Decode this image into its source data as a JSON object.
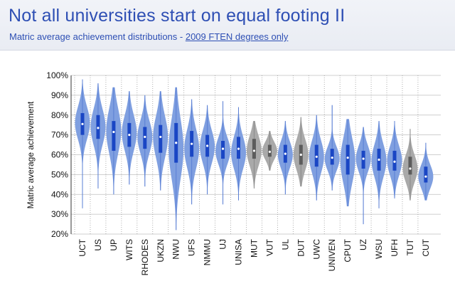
{
  "header": {
    "title": "Not all universities start on equal footing II",
    "subtitle_prefix": "Matric average achievement distributions - ",
    "subtitle_link": "2009 FTEN degrees only"
  },
  "colors": {
    "violin_blue": "#7f9fe0",
    "box_blue": "#1a46c4",
    "violin_grey": "#a9a9a9",
    "box_grey": "#5c5c5c",
    "title": "#2e4fb4"
  },
  "chart_data": {
    "type": "violin",
    "ylabel": "Matric average achievement",
    "ylim": [
      20,
      100
    ],
    "yticks": [
      "20%",
      "30%",
      "40%",
      "50%",
      "60%",
      "70%",
      "80%",
      "90%",
      "100%"
    ],
    "grid": true,
    "categories": [
      "UCT",
      "US",
      "UP",
      "WITS",
      "RHODES",
      "UKZN",
      "NWU",
      "UFS",
      "NMMU",
      "UJ",
      "UNISA",
      "MUT",
      "VUT",
      "UL",
      "DUT",
      "UWC",
      "UNIVEN",
      "CPUT",
      "UZ",
      "WSU",
      "UFH",
      "TUT",
      "CUT"
    ],
    "grey": [
      false,
      false,
      false,
      false,
      false,
      false,
      false,
      false,
      false,
      false,
      false,
      true,
      true,
      false,
      true,
      false,
      false,
      false,
      false,
      false,
      false,
      true,
      false
    ],
    "min": [
      33,
      43,
      40,
      45,
      44,
      42,
      22,
      35,
      40,
      35,
      37,
      43,
      52,
      40,
      44,
      37,
      42,
      34,
      25,
      33,
      38,
      37,
      37
    ],
    "max": [
      98,
      96,
      94,
      92,
      90,
      92,
      94,
      88,
      85,
      87,
      84,
      77,
      72,
      77,
      79,
      80,
      85,
      78,
      74,
      77,
      77,
      73,
      66
    ],
    "q1": [
      70,
      68,
      62,
      64,
      63,
      61,
      56,
      59,
      59,
      58,
      58,
      58,
      59,
      56,
      55,
      54,
      55,
      50,
      53,
      52,
      52,
      50,
      46
    ],
    "median": [
      75.5,
      73.5,
      71.5,
      70,
      69,
      69,
      66,
      65.5,
      64.5,
      63,
      63,
      62,
      61.5,
      60.5,
      60,
      59,
      58.5,
      58.5,
      58,
      57.5,
      56.5,
      53,
      49
    ],
    "q3": [
      81,
      80,
      77,
      76,
      74,
      75,
      76,
      72,
      70,
      67,
      69,
      68,
      65,
      65,
      65,
      65,
      63,
      65,
      62,
      63,
      62,
      59,
      54
    ],
    "mode": [
      76,
      74,
      72,
      71,
      69,
      69,
      63,
      63,
      64,
      62,
      61,
      62,
      62,
      60,
      60,
      59,
      58,
      57,
      58,
      57,
      57,
      53,
      49
    ]
  }
}
